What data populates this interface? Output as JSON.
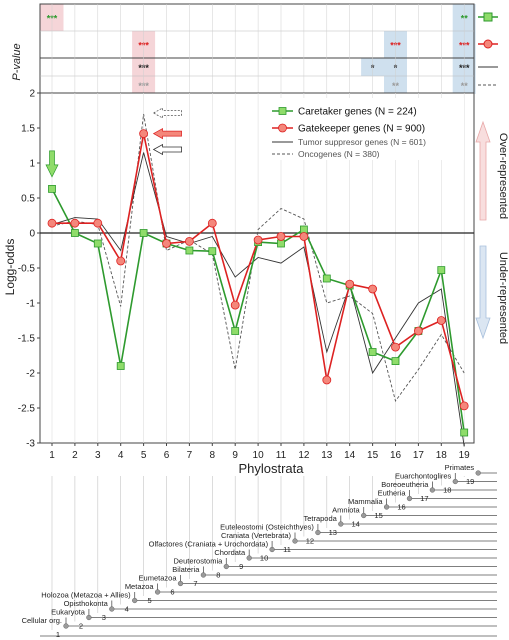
{
  "chart_data": {
    "type": "line",
    "x": [
      1,
      2,
      3,
      4,
      5,
      6,
      7,
      8,
      9,
      10,
      11,
      12,
      13,
      14,
      15,
      16,
      17,
      18,
      19
    ],
    "xlabel": "Phylostrata",
    "ylabel": "Logg-odds",
    "ylim": [
      -3,
      2
    ],
    "yticks": [
      2,
      1.5,
      1,
      0.5,
      0,
      -0.5,
      -1,
      -1.5,
      -2,
      -2.5,
      -3
    ],
    "ytick_labels": [
      "2",
      "1.5",
      "1",
      "0.5",
      "0",
      "-0.5",
      "-1",
      "-1.5",
      "-2",
      "-2.5",
      "-3"
    ],
    "legend_position": "top-right",
    "series": [
      {
        "name": "Caretaker genes (N = 224)",
        "color": "#2e9a2e",
        "marker": "square",
        "marker_fill": "#8fdc6a",
        "dash": "solid",
        "values": [
          0.63,
          0.0,
          -0.15,
          -1.9,
          0.0,
          -0.15,
          -0.25,
          -0.26,
          -1.4,
          -0.13,
          -0.15,
          0.05,
          -0.65,
          -0.75,
          -1.7,
          -1.83,
          -1.4,
          -0.53,
          -2.85
        ]
      },
      {
        "name": "Gatekeeper genes (N = 900)",
        "color": "#dd2222",
        "marker": "circle",
        "marker_fill": "#f4877b",
        "dash": "solid",
        "values": [
          0.14,
          0.14,
          0.14,
          -0.4,
          1.42,
          -0.15,
          -0.12,
          0.14,
          -1.03,
          -0.1,
          -0.05,
          -0.05,
          -2.1,
          -0.73,
          -0.8,
          -1.63,
          -1.4,
          -1.25,
          -2.47
        ]
      },
      {
        "name": "Tumor suppresor genes (N = 601)",
        "color": "#333333",
        "marker": "none",
        "dash": "solid",
        "values": [
          0.12,
          0.22,
          0.2,
          -0.25,
          1.15,
          -0.05,
          -0.15,
          -0.05,
          -0.63,
          -0.35,
          -0.43,
          -0.2,
          -1.7,
          -0.75,
          -2.0,
          -1.5,
          -1.0,
          -0.8,
          -3.05
        ]
      },
      {
        "name": "Oncogenes (N = 380)",
        "color": "#555555",
        "marker": "none",
        "dash": "dashed",
        "values": [
          0.1,
          0.17,
          0.12,
          -1.05,
          1.7,
          -0.25,
          -0.1,
          -0.3,
          -1.95,
          0.05,
          0.35,
          0.2,
          -1.0,
          -0.9,
          -1.15,
          -2.4,
          -1.95,
          -1.45,
          -2.0
        ]
      }
    ],
    "right_annotations": {
      "over": "Over-represented",
      "under": "Under-represented"
    },
    "pvalue_panel": {
      "ylabel": "P-value",
      "rows": [
        {
          "cells": [
            {
              "x": 1,
              "label": "***",
              "text_color": "#2e9a2e",
              "bg": "#f5d5d8"
            },
            {
              "x": 19,
              "label": "**",
              "text_color": "#2e9a2e",
              "bg": "#cfe0ee"
            }
          ]
        },
        {
          "cells": [
            {
              "x": 5,
              "label": "***",
              "text_color": "#dd2222",
              "bg": "#f5d5d8"
            },
            {
              "x": 16,
              "label": "***",
              "text_color": "#dd2222",
              "bg": "#cfe0ee"
            },
            {
              "x": 19,
              "label": "***",
              "text_color": "#dd2222",
              "bg": "#cfe0ee"
            }
          ]
        },
        {
          "cells": [
            {
              "x": 5,
              "label": "***",
              "text_color": "#222222",
              "bg": "#f5d5d8"
            },
            {
              "x": 15,
              "label": "*",
              "text_color": "#222222",
              "bg": "#cfe0ee"
            },
            {
              "x": 16,
              "label": "*",
              "text_color": "#222222",
              "bg": "#cfe0ee"
            },
            {
              "x": 19,
              "label": "***",
              "text_color": "#222222",
              "bg": "#cfe0ee"
            }
          ]
        },
        {
          "cells": [
            {
              "x": 5,
              "label": "***",
              "text_color": "#999999",
              "bg": "#f5d5d8"
            },
            {
              "x": 16,
              "label": "**",
              "text_color": "#999999",
              "bg": "#cfe0ee"
            },
            {
              "x": 19,
              "label": "**",
              "text_color": "#999999",
              "bg": "#cfe0ee"
            }
          ]
        }
      ]
    },
    "phylostrata_tree": [
      {
        "n": 1,
        "label": "Cellular org."
      },
      {
        "n": 2,
        "label": "Eukaryota"
      },
      {
        "n": 3,
        "label": "Opisthokonta"
      },
      {
        "n": 4,
        "label": "Holozoa (Metazoa + Allies)"
      },
      {
        "n": 5,
        "label": "Metazoa"
      },
      {
        "n": 6,
        "label": "Eumetazoa"
      },
      {
        "n": 7,
        "label": "Bilateria"
      },
      {
        "n": 8,
        "label": "Deuterostomia"
      },
      {
        "n": 9,
        "label": "Chordata"
      },
      {
        "n": 10,
        "label": "Olfactores (Craniata + Urochordata)"
      },
      {
        "n": 11,
        "label": "Craniata (Vertebrata)"
      },
      {
        "n": 12,
        "label": "Euteleostomi (Osteichthyes)"
      },
      {
        "n": 13,
        "label": "Tetrapoda"
      },
      {
        "n": 14,
        "label": "Amniota"
      },
      {
        "n": 15,
        "label": "Mammalia"
      },
      {
        "n": 16,
        "label": "Eutheria"
      },
      {
        "n": 17,
        "label": "Boreoeutheria"
      },
      {
        "n": 18,
        "label": "Euarchontoglires"
      },
      {
        "n": 19,
        "label": "Primates"
      }
    ]
  }
}
